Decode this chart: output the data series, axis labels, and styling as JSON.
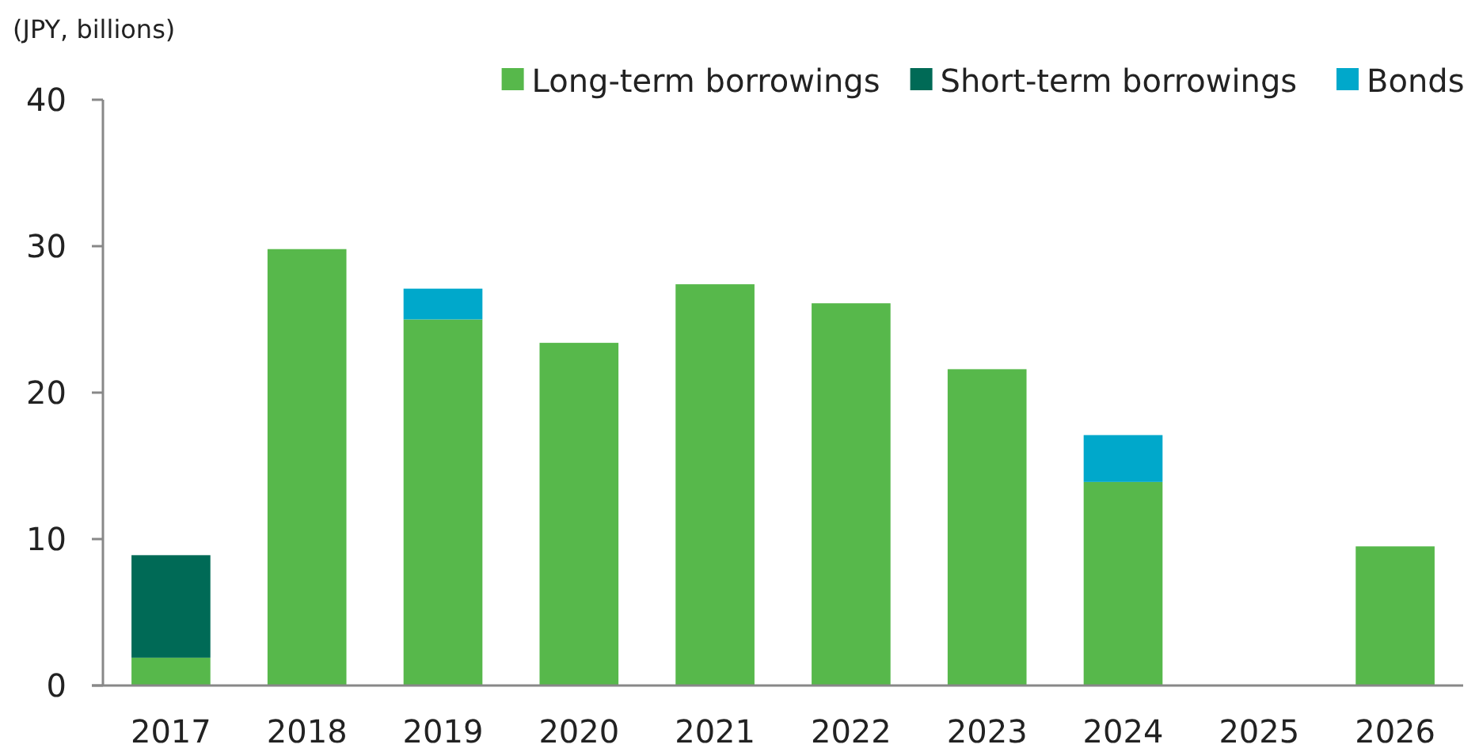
{
  "chart_data": {
    "type": "bar",
    "ylabel": "(JPY, billions)",
    "stacked": true,
    "categories": [
      "2017",
      "2018",
      "2019",
      "2020",
      "2021",
      "2022",
      "2023",
      "2024",
      "2025",
      "2026"
    ],
    "series": [
      {
        "name": "Long-term borrowings",
        "color": "#57b84b",
        "values": [
          1.9,
          29.8,
          25.0,
          23.4,
          27.4,
          26.1,
          21.6,
          13.9,
          0,
          9.5
        ]
      },
      {
        "name": "Short-term borrowings",
        "color": "#006a56",
        "values": [
          7.0,
          0,
          0,
          0,
          0,
          0,
          0,
          0,
          0,
          0
        ]
      },
      {
        "name": "Bonds",
        "color": "#00a8cb",
        "values": [
          0,
          0,
          2.1,
          0,
          0,
          0,
          0,
          3.2,
          0,
          0
        ]
      }
    ],
    "ylim": [
      0,
      40
    ],
    "yticks": [
      0,
      10,
      20,
      30,
      40
    ],
    "grid": false,
    "legend": "top right"
  }
}
